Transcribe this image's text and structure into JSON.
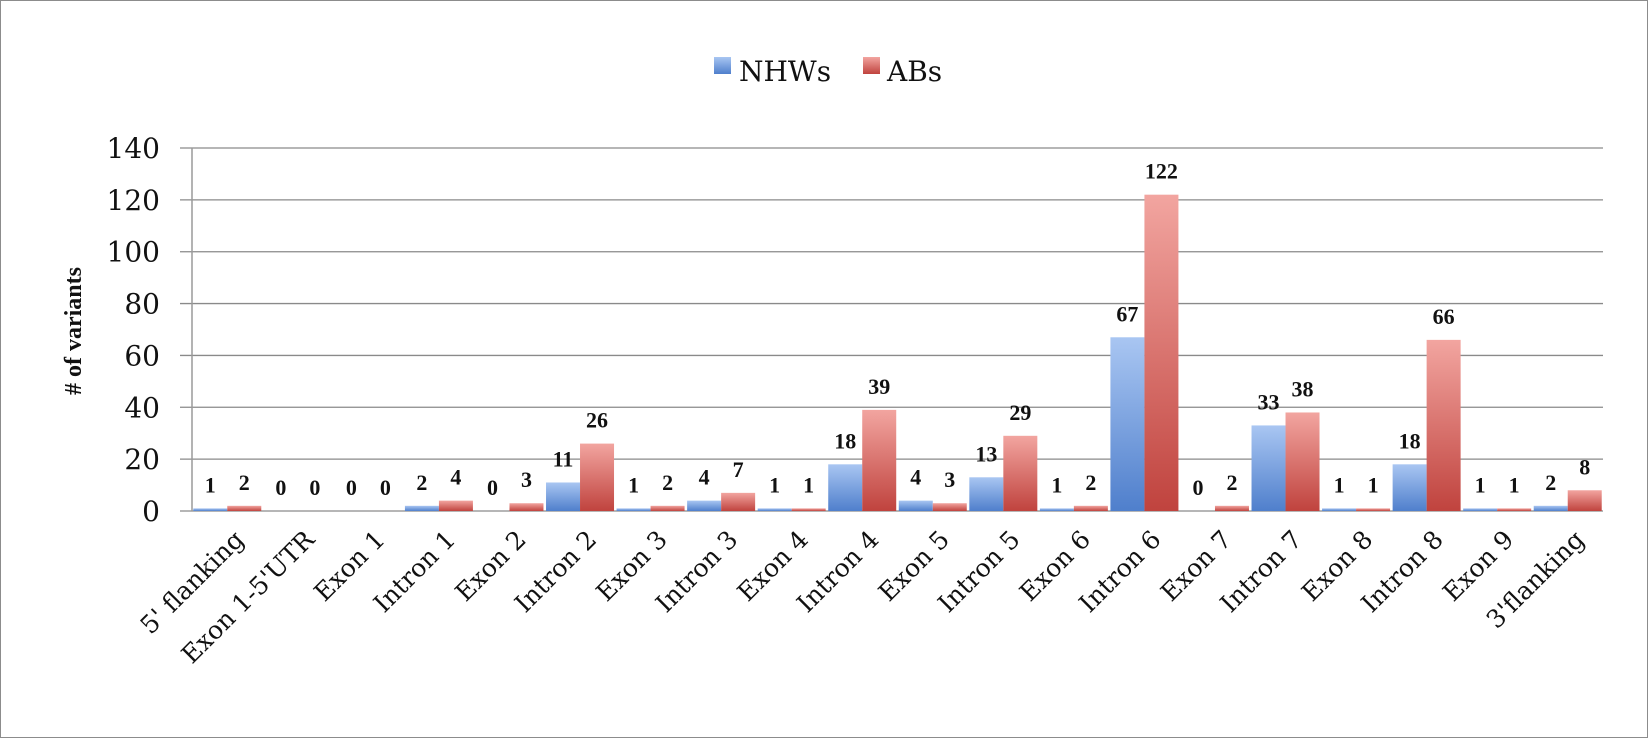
{
  "chart_data": {
    "type": "bar",
    "title": "",
    "xlabel": "",
    "ylabel": "# of variants",
    "ylim": [
      0,
      140
    ],
    "yticks": [
      0,
      20,
      40,
      60,
      80,
      100,
      120,
      140
    ],
    "grid": true,
    "legend_position": "top",
    "categories": [
      "5' flanking",
      "Exon 1-5'UTR",
      "Exon 1",
      "Intron 1",
      "Exon 2",
      "Intron 2",
      "Exon 3",
      "Intron 3",
      "Exon 4",
      "Intron 4",
      "Exon 5",
      "Intron 5",
      "Exon 6",
      "Intron 6",
      "Exon 7",
      "Intron 7",
      "Exon 8",
      "Intron 8",
      "Exon 9",
      "3'flanking"
    ],
    "series": [
      {
        "name": "NHWs",
        "color": "#5b8fd9",
        "values": [
          1,
          0,
          0,
          2,
          0,
          11,
          1,
          4,
          1,
          18,
          4,
          13,
          1,
          67,
          0,
          33,
          1,
          18,
          1,
          2
        ]
      },
      {
        "name": "ABs",
        "color": "#c9504b",
        "values": [
          2,
          0,
          0,
          4,
          3,
          26,
          2,
          7,
          1,
          39,
          3,
          29,
          2,
          122,
          2,
          38,
          1,
          66,
          1,
          8
        ]
      }
    ]
  }
}
